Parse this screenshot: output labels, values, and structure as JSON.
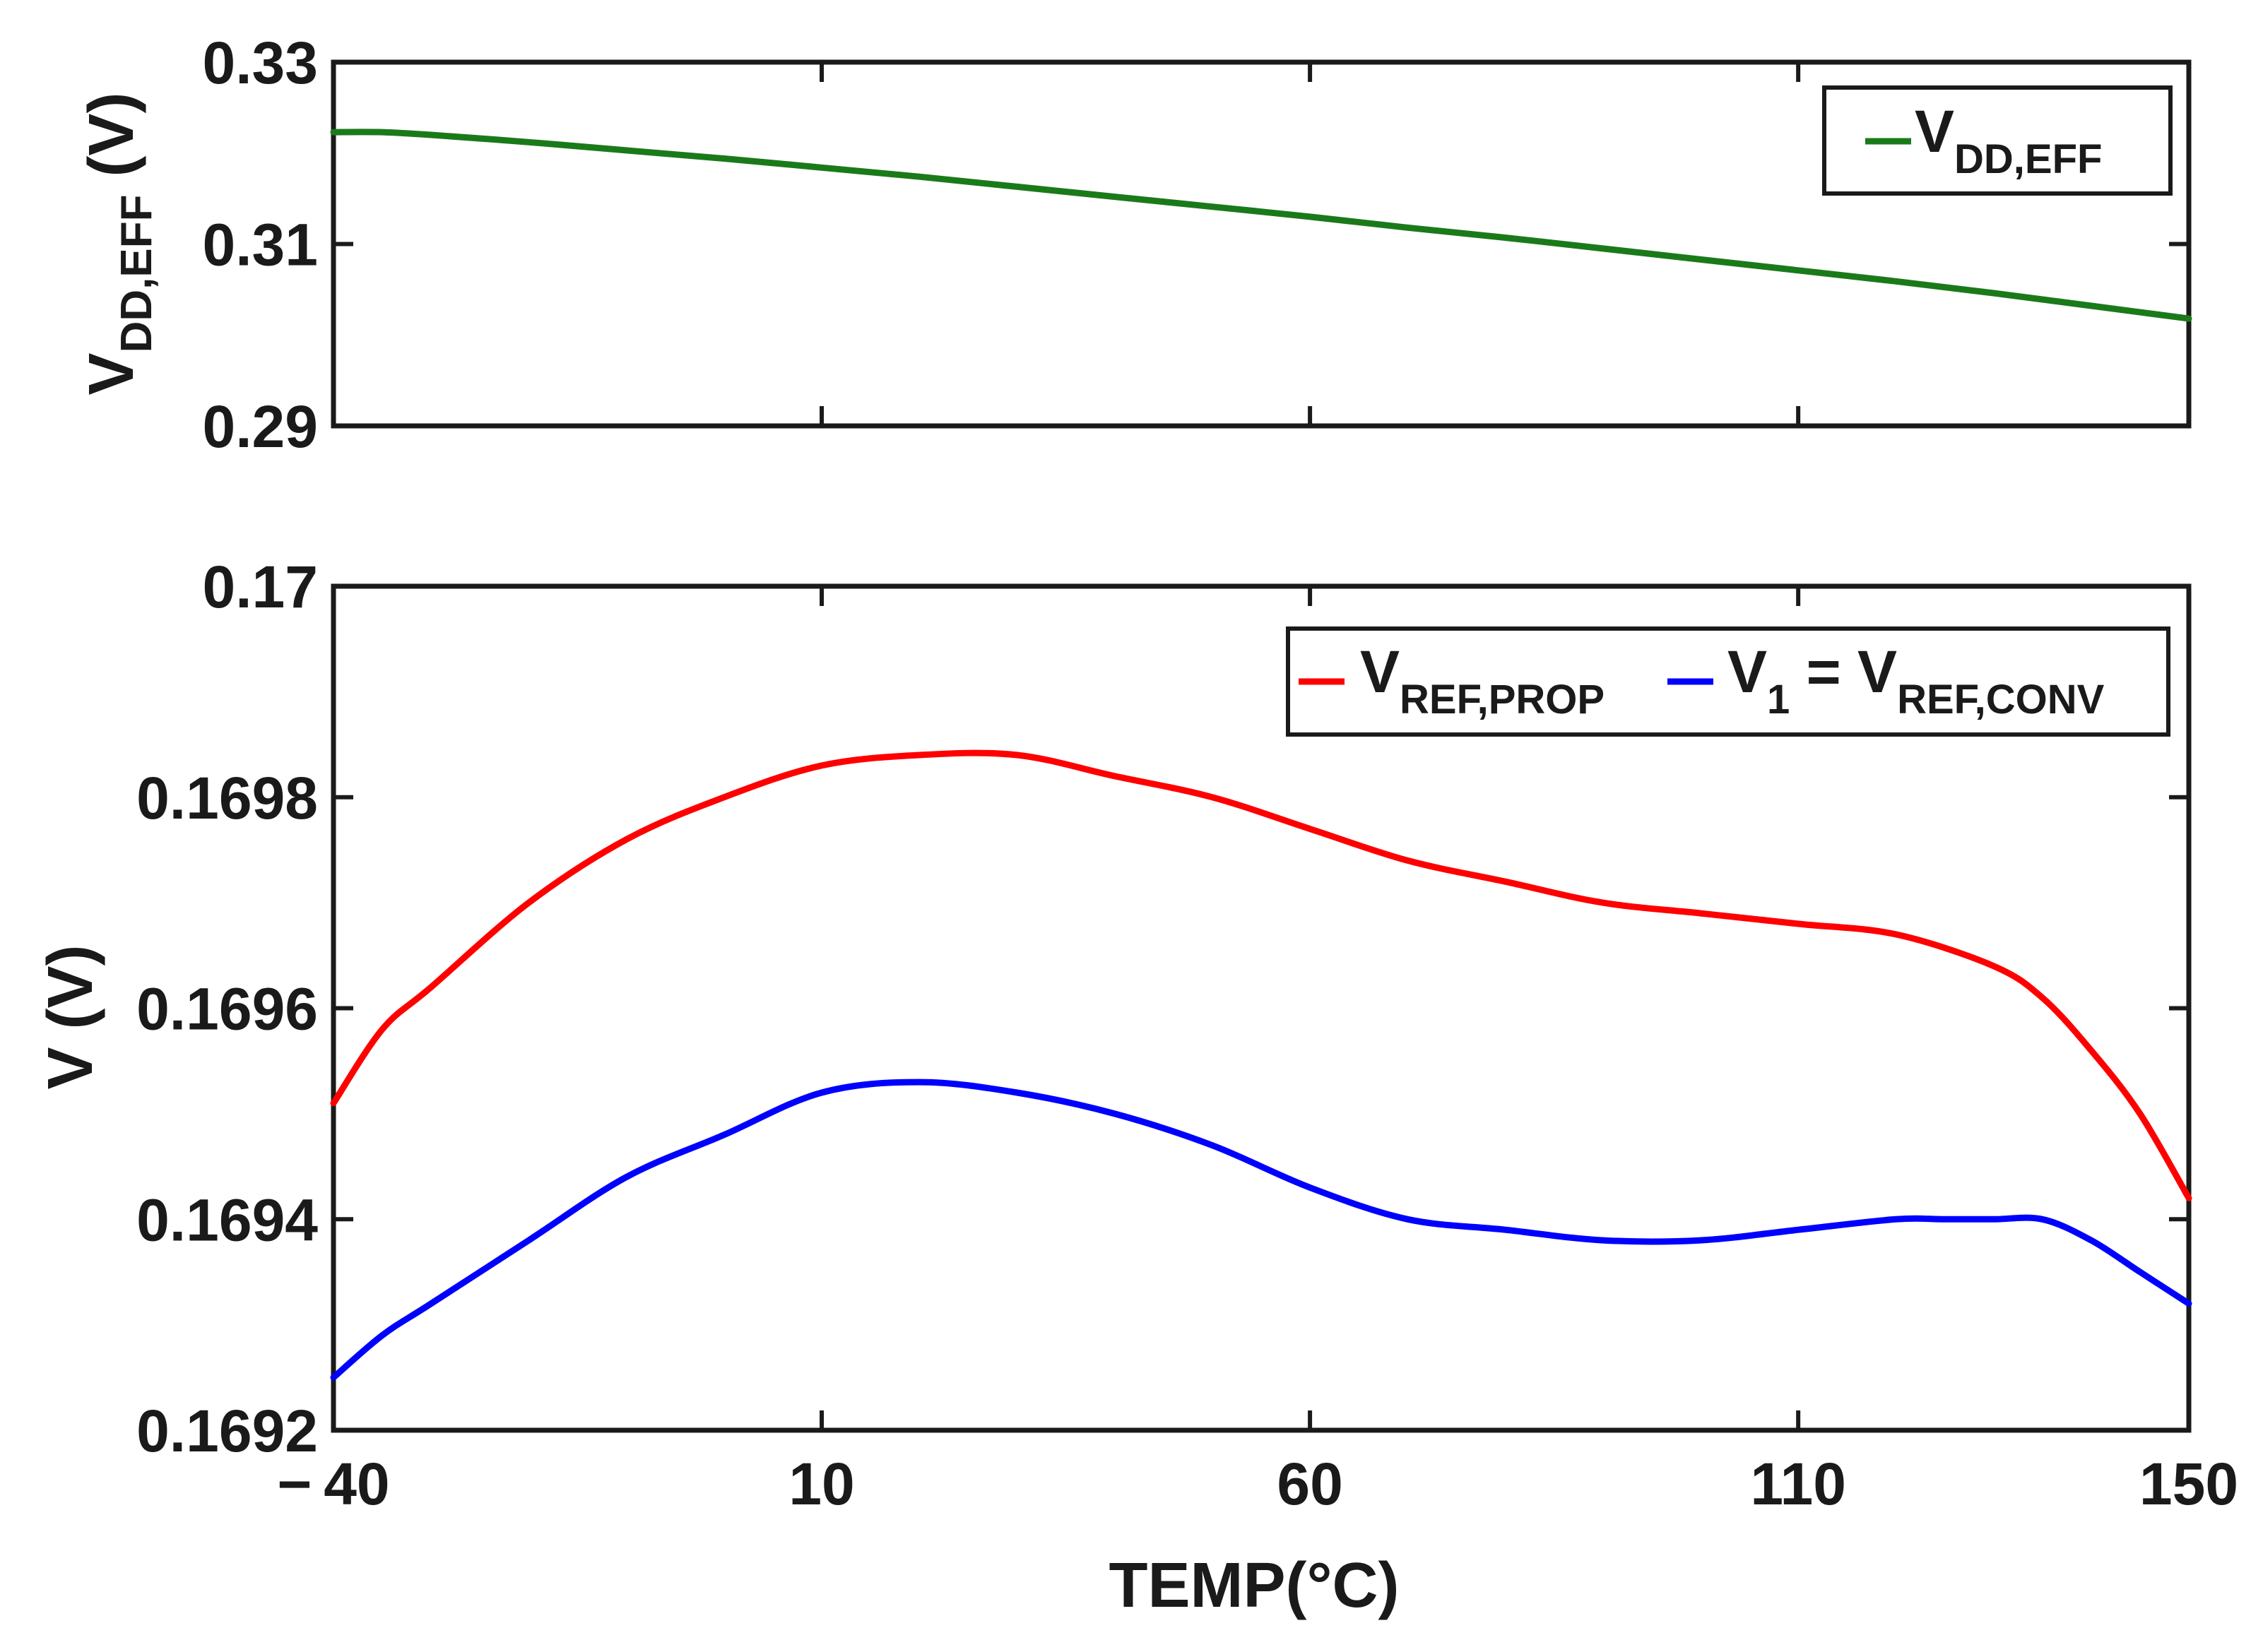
{
  "chart_data": [
    {
      "type": "line",
      "panel": "top",
      "ylabel_main": "V",
      "ylabel_sub": "DD,EFF",
      "ylabel_unit": " (V)",
      "xlim": [
        -40,
        150
      ],
      "ylim": [
        0.29,
        0.33
      ],
      "yticks": [
        "0.33",
        "0.31",
        "0.29"
      ],
      "ytick_values": [
        0.33,
        0.31,
        0.29
      ],
      "grid": false,
      "legend_position": "top-right",
      "series": [
        {
          "name": "V_DD,EFF",
          "legend_main": "V",
          "legend_sub": "DD,EFF",
          "color": "#1a7a1a",
          "x": [
            -40,
            -35,
            -30,
            -20,
            -10,
            0,
            10,
            20,
            30,
            40,
            50,
            60,
            70,
            80,
            90,
            100,
            110,
            120,
            130,
            140,
            150
          ],
          "y": [
            0.3223,
            0.3223,
            0.322,
            0.3212,
            0.3203,
            0.3194,
            0.3184,
            0.3174,
            0.3163,
            0.3152,
            0.3141,
            0.313,
            0.3118,
            0.3107,
            0.3095,
            0.3083,
            0.3071,
            0.3059,
            0.3046,
            0.3032,
            0.3018
          ]
        }
      ]
    },
    {
      "type": "line",
      "panel": "bottom",
      "ylabel": "V (V)",
      "xlabel": "TEMP(°C)",
      "xlim": [
        -40,
        150
      ],
      "ylim": [
        0.1692,
        0.17
      ],
      "xticks": [
        "− 40",
        "10",
        "60",
        "110",
        "150"
      ],
      "xtick_values": [
        -40,
        10,
        60,
        110,
        150
      ],
      "yticks": [
        "0.17",
        "0.1698",
        "0.1696",
        "0.1694",
        "0.1692"
      ],
      "ytick_values": [
        0.17,
        0.1698,
        0.1696,
        0.1694,
        0.1692
      ],
      "grid": false,
      "legend_position": "top-right",
      "series": [
        {
          "name": "V_REF,PROP",
          "legend_main": "V",
          "legend_sub": "REF,PROP",
          "color": "#ff0000",
          "x": [
            -40,
            -35,
            -30,
            -20,
            -10,
            0,
            10,
            20,
            30,
            40,
            50,
            60,
            70,
            80,
            90,
            100,
            110,
            120,
            130,
            135,
            140,
            145,
            150
          ],
          "y": [
            0.16951,
            0.16958,
            0.16962,
            0.1697,
            0.16976,
            0.1698,
            0.16983,
            0.16984,
            0.16984,
            0.16982,
            0.1698,
            0.16977,
            0.16974,
            0.16972,
            0.1697,
            0.16969,
            0.16968,
            0.16967,
            0.16964,
            0.16961,
            0.16956,
            0.1695,
            0.16942
          ]
        },
        {
          "name": "V_1 = V_REF,CONV",
          "legend_main": "V",
          "legend_sub": "1",
          "legend_mid": " = V",
          "legend_sub2": "REF,CONV",
          "color": "#0000ff",
          "x": [
            -40,
            -35,
            -30,
            -20,
            -10,
            0,
            10,
            20,
            30,
            40,
            50,
            60,
            70,
            80,
            90,
            100,
            110,
            120,
            125,
            130,
            135,
            140,
            145,
            150
          ],
          "y": [
            0.16925,
            0.16929,
            0.16932,
            0.16938,
            0.16944,
            0.16948,
            0.16952,
            0.16953,
            0.16952,
            0.1695,
            0.16947,
            0.16943,
            0.1694,
            0.16939,
            0.16938,
            0.16938,
            0.16939,
            0.1694,
            0.1694,
            0.1694,
            0.1694,
            0.16938,
            0.16935,
            0.16932
          ]
        }
      ]
    }
  ]
}
